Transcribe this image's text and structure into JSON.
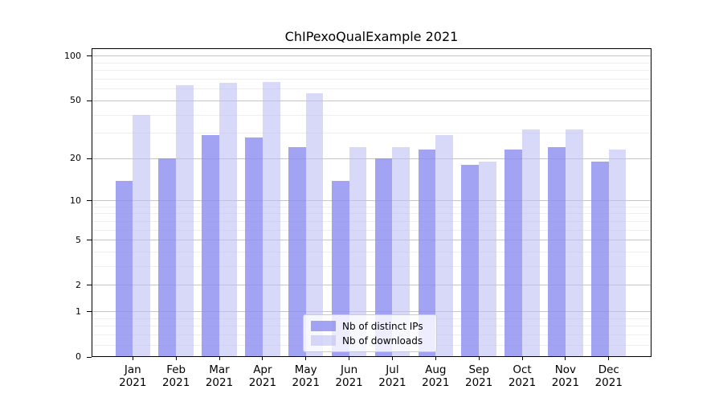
{
  "chart_data": {
    "type": "bar",
    "title": "ChIPexoQualExample 2021",
    "year": "2021",
    "categories": [
      "Jan",
      "Feb",
      "Mar",
      "Apr",
      "May",
      "Jun",
      "Jul",
      "Aug",
      "Sep",
      "Oct",
      "Nov",
      "Dec"
    ],
    "series": [
      {
        "name": "Nb of distinct IPs",
        "color": "rgba(140,140,240,0.8)",
        "values": [
          14,
          20,
          29,
          28,
          24,
          14,
          20,
          23,
          18,
          23,
          24,
          19
        ]
      },
      {
        "name": "Nb of downloads",
        "color": "rgba(190,190,245,0.6)",
        "values": [
          40,
          64,
          66,
          67,
          56,
          24,
          24,
          29,
          19,
          32,
          32,
          23
        ]
      }
    ],
    "yscale": "log1p",
    "ylim": [
      0,
      113
    ],
    "yticks": [
      100,
      50,
      20,
      10,
      5,
      2,
      1,
      0
    ],
    "minor_gridlines": [
      0.2,
      0.4,
      0.6,
      0.8,
      3,
      4,
      6,
      7,
      8,
      9,
      30,
      40,
      60,
      70,
      80,
      90
    ],
    "grid": "on",
    "legend_position": "lower-center",
    "colors": {
      "major_grid": "#c6c6c6",
      "minor_grid": "#eeeeee",
      "spine": "#000000",
      "text": "#000000",
      "bar_distinct_ips": "rgba(140,140,240,0.8)",
      "bar_downloads": "rgba(190,190,245,0.6)"
    }
  }
}
